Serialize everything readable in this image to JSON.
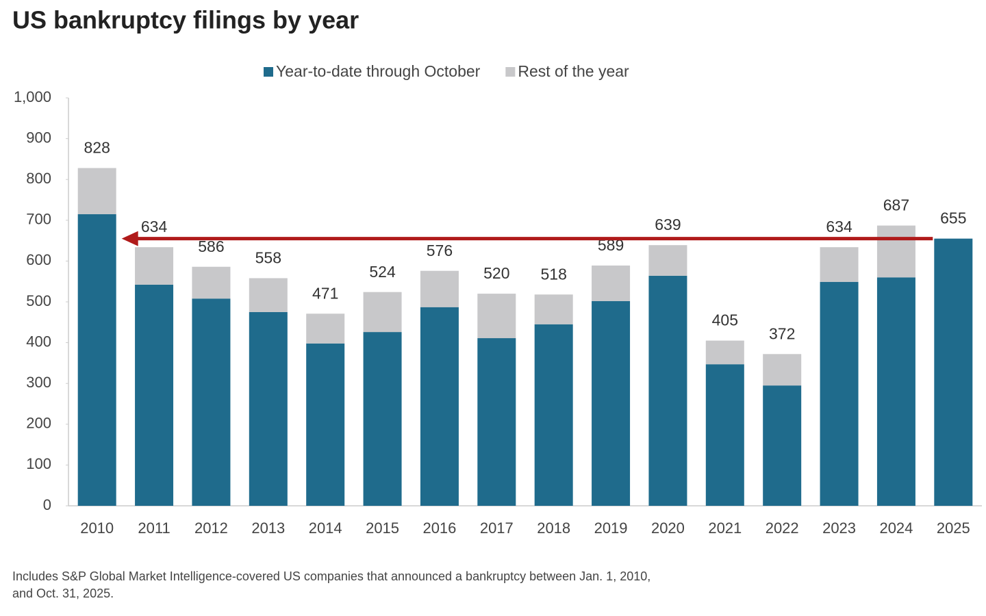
{
  "chart_data": {
    "type": "stacked_bar",
    "title": "US bankruptcy filings by year",
    "categories": [
      "2010",
      "2011",
      "2012",
      "2013",
      "2014",
      "2015",
      "2016",
      "2017",
      "2018",
      "2019",
      "2020",
      "2021",
      "2022",
      "2023",
      "2024",
      "2025"
    ],
    "series": [
      {
        "name": "Year-to-date through October",
        "color": "#1f6b8c",
        "values": [
          715,
          542,
          508,
          475,
          398,
          426,
          487,
          411,
          445,
          502,
          564,
          347,
          295,
          549,
          560,
          655
        ]
      },
      {
        "name": "Rest of the year",
        "color": "#c8c8ca",
        "values": [
          113,
          92,
          78,
          83,
          73,
          98,
          89,
          109,
          73,
          87,
          75,
          58,
          77,
          85,
          127,
          null
        ]
      }
    ],
    "totals": [
      828,
      634,
      586,
      558,
      471,
      524,
      576,
      520,
      518,
      589,
      639,
      405,
      372,
      634,
      687,
      655
    ],
    "ylim": [
      0,
      1000
    ],
    "yticks": [
      0,
      100,
      200,
      300,
      400,
      500,
      600,
      700,
      800,
      900,
      {
        "value": 1000,
        "label": "1,000"
      }
    ],
    "grid": false,
    "legend": "top",
    "arrow_color": "#b01a1a",
    "note": [
      "Includes S&P Global Market Intelligence-covered US companies that announced a bankruptcy between Jan. 1, 2010,",
      "and Oct. 31, 2025."
    ]
  }
}
